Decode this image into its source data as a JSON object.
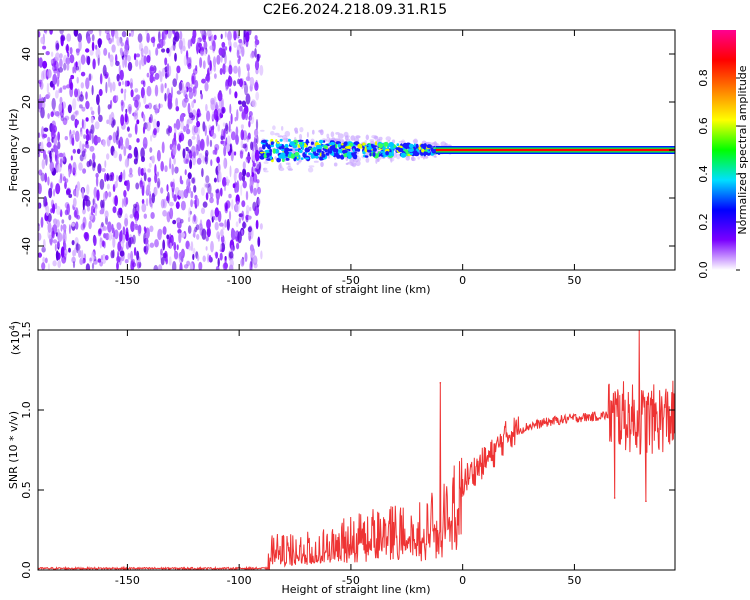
{
  "title": "C2E6.2024.218.09.31.R15",
  "chart_data": [
    {
      "type": "heatmap",
      "xlabel": "Height of straight line (km)",
      "ylabel": "Frequency (Hz)",
      "xlim": [
        -190,
        95
      ],
      "ylim": [
        -50,
        50
      ],
      "x_ticks": [
        -150,
        -100,
        -50,
        0,
        50
      ],
      "x_tick_labels": [
        "-150",
        "-100",
        "-50",
        "0",
        "50"
      ],
      "y_ticks": [
        -40,
        -20,
        0,
        20,
        40
      ],
      "y_tick_labels": [
        "-40",
        "-20",
        "0",
        "20",
        "40"
      ],
      "noise_region_x": [
        -190,
        -90
      ],
      "signal_line_y": 0,
      "colorbar": {
        "label": "Normalized spectral amplitude",
        "range": [
          0.0,
          1.0
        ],
        "ticks": [
          0.0,
          0.2,
          0.4,
          0.6,
          0.8
        ],
        "tick_labels": [
          "0.0",
          "0.2",
          "0.4",
          "0.6",
          "0.8"
        ],
        "colormap": [
          "#ffffff",
          "#7a00ff",
          "#0000ff",
          "#00e0ff",
          "#00ff00",
          "#ffff00",
          "#ff8000",
          "#ff0000",
          "#ff0090"
        ]
      }
    },
    {
      "type": "line",
      "xlabel": "Height of straight line (km)",
      "ylabel": "SNR (10 * v/v)",
      "scale_label": "(x10",
      "scale_exp": "4",
      "xlim": [
        -190,
        95
      ],
      "ylim": [
        0.0,
        1.5
      ],
      "x_ticks": [
        -150,
        -100,
        -50,
        0,
        50
      ],
      "x_tick_labels": [
        "-150",
        "-100",
        "-50",
        "0",
        "50"
      ],
      "y_ticks": [
        0.0,
        0.5,
        1.0,
        1.5
      ],
      "y_tick_labels": [
        "0.0",
        "0.5",
        "1.0",
        "1.5"
      ],
      "color": "#ee3333",
      "series": [
        {
          "x": [
            -190,
            -160,
            -130,
            -100,
            -87,
            -85,
            -80,
            -70,
            -60,
            -50,
            -40,
            -30,
            -20,
            -15,
            -10,
            -5,
            0,
            5,
            10,
            15,
            20,
            30,
            40,
            50,
            60,
            65,
            68,
            70,
            75,
            80,
            85,
            90,
            95
          ],
          "values": [
            0.01,
            0.01,
            0.01,
            0.01,
            0.01,
            0.15,
            0.12,
            0.13,
            0.14,
            0.22,
            0.25,
            0.28,
            0.25,
            0.3,
            0.35,
            0.45,
            0.55,
            0.62,
            0.68,
            0.75,
            0.85,
            0.9,
            0.93,
            0.95,
            0.96,
            0.97,
            0.97,
            0.97,
            0.95,
            0.93,
            0.94,
            0.95,
            0.97
          ]
        }
      ],
      "annotations": [
        {
          "x": -10,
          "y": 1.17
        },
        {
          "x": 68,
          "y": 0.45
        },
        {
          "x": 79,
          "y": 1.5
        },
        {
          "x": 82,
          "y": 0.43
        }
      ]
    }
  ]
}
